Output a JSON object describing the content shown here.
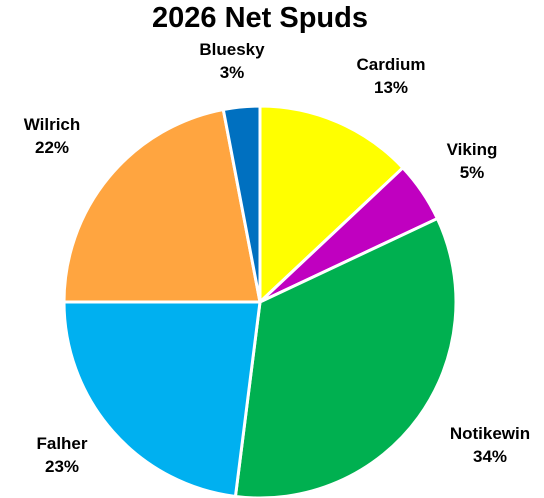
{
  "chart_data": {
    "type": "pie",
    "title": "2026 Net Spuds",
    "slices": [
      {
        "name": "Cardium",
        "value": 13,
        "label": "13%",
        "color": "#FFFF00"
      },
      {
        "name": "Viking",
        "value": 5,
        "label": "5%",
        "color": "#C000C0"
      },
      {
        "name": "Notikewin",
        "value": 34,
        "label": "34%",
        "color": "#00B050"
      },
      {
        "name": "Falher",
        "value": 23,
        "label": "23%",
        "color": "#00B0F0"
      },
      {
        "name": "Wilrich",
        "value": 22,
        "label": "22%",
        "color": "#FFA540"
      },
      {
        "name": "Bluesky",
        "value": 3,
        "label": "3%",
        "color": "#0070C0"
      }
    ],
    "start_angle": "12 o'clock",
    "direction": "clockwise",
    "legend": "none",
    "data_labels": "outside"
  }
}
